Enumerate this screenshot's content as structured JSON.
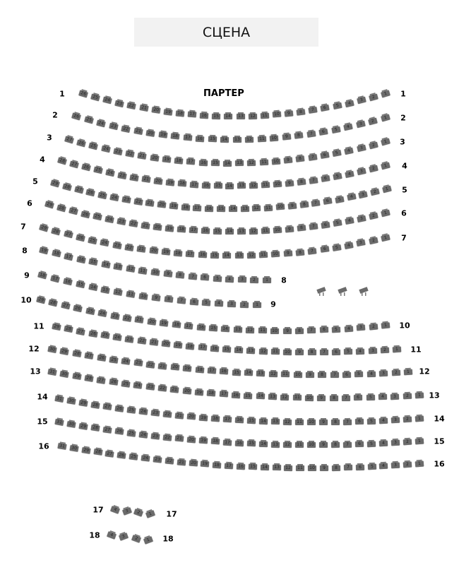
{
  "stage_label": "СЦЕНА",
  "section_label": "ПАРТЕР",
  "colors": {
    "seat": "#6b6b6b",
    "stage_bg": "#f2f2f2"
  },
  "rows": [
    {
      "label": "1",
      "seat_count": 26
    },
    {
      "label": "2",
      "seat_count": 26
    },
    {
      "label": "3",
      "seat_count": 27
    },
    {
      "label": "4",
      "seat_count": 28
    },
    {
      "label": "5",
      "seat_count": 29
    },
    {
      "label": "6",
      "seat_count": 29
    },
    {
      "label": "7",
      "seat_count": 29
    },
    {
      "label": "8",
      "seat_count": 19
    },
    {
      "label": "9",
      "seat_count": 18
    },
    {
      "label": "10",
      "seat_count": 29
    },
    {
      "label": "11",
      "seat_count": 29
    },
    {
      "label": "12",
      "seat_count": 30
    },
    {
      "label": "13",
      "seat_count": 31
    },
    {
      "label": "14",
      "seat_count": 31
    },
    {
      "label": "15",
      "seat_count": 31
    },
    {
      "label": "16",
      "seat_count": 31
    },
    {
      "label": "17",
      "seat_count": 4
    },
    {
      "label": "18",
      "seat_count": 4
    }
  ],
  "extra_seats": {
    "count": 3,
    "icon": "wheelchair-seat-icon"
  }
}
